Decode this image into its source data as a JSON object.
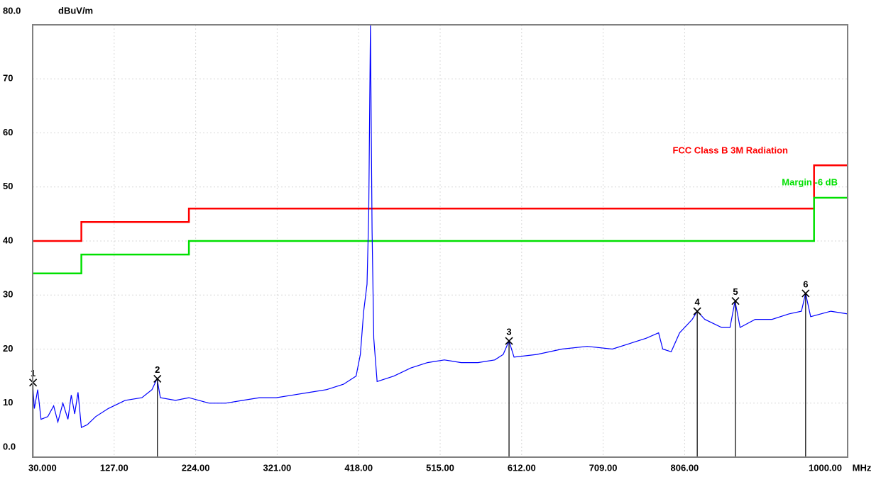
{
  "chart_data": {
    "type": "line",
    "y_unit": "dBuV/m",
    "x_unit": "MHz",
    "xlim": [
      30,
      1000
    ],
    "ylim": [
      0,
      80
    ],
    "xticks": [
      {
        "value": 30,
        "label": "30.000"
      },
      {
        "value": 127,
        "label": "127.00"
      },
      {
        "value": 224,
        "label": "224.00"
      },
      {
        "value": 321,
        "label": "321.00"
      },
      {
        "value": 418,
        "label": "418.00"
      },
      {
        "value": 515,
        "label": "515.00"
      },
      {
        "value": 612,
        "label": "612.00"
      },
      {
        "value": 709,
        "label": "709.00"
      },
      {
        "value": 806,
        "label": "806.00"
      },
      {
        "value": 1000,
        "label": "1000.00"
      }
    ],
    "yticks": [
      {
        "value": 0,
        "label": "0.0"
      },
      10,
      20,
      30,
      40,
      50,
      60,
      70,
      {
        "value": 80,
        "label": "80.0"
      }
    ],
    "grid": true,
    "series": [
      {
        "name": "FCC Class B 3M Radiation",
        "color": "#ff0000",
        "x": [
          30,
          88,
          88,
          216,
          216,
          960,
          960,
          1000
        ],
        "values": [
          40,
          40,
          43.5,
          43.5,
          46,
          46,
          54,
          54
        ]
      },
      {
        "name": "Margin -6 dB",
        "color": "#00e000",
        "x": [
          30,
          88,
          88,
          216,
          216,
          960,
          960,
          1000
        ],
        "values": [
          34,
          34,
          37.5,
          37.5,
          40,
          40,
          48,
          48
        ]
      },
      {
        "color": "#0000ff",
        "x": [
          30,
          32,
          36,
          40,
          48,
          55,
          60,
          66,
          72,
          76,
          80,
          84,
          88,
          95,
          105,
          120,
          140,
          160,
          172,
          178,
          182,
          200,
          216,
          240,
          260,
          280,
          300,
          320,
          340,
          360,
          380,
          400,
          415,
          420,
          424,
          428,
          430,
          432,
          434,
          436,
          440,
          460,
          480,
          500,
          520,
          540,
          560,
          580,
          590,
          597,
          603,
          630,
          660,
          690,
          720,
          740,
          760,
          775,
          780,
          790,
          800,
          815,
          821,
          830,
          850,
          860,
          866,
          872,
          890,
          910,
          930,
          945,
          950,
          956,
          980,
          1000
        ],
        "values": [
          13.5,
          9,
          12.5,
          7,
          7.5,
          9.5,
          6.5,
          10,
          7,
          11.5,
          8,
          12,
          5.5,
          6,
          7.5,
          9,
          10.5,
          11,
          12.5,
          14.5,
          11,
          10.5,
          11,
          10,
          10,
          10.5,
          11,
          11,
          11.5,
          12,
          12.5,
          13.5,
          15,
          19,
          27,
          32,
          45,
          80,
          42,
          22,
          14,
          15,
          16.5,
          17.5,
          18,
          17.5,
          17.5,
          18,
          19,
          21.5,
          18.5,
          19,
          20,
          20.5,
          20,
          21,
          22,
          23,
          20,
          19.5,
          23,
          25.5,
          27,
          25.5,
          24,
          24,
          28.9,
          24,
          25.5,
          25.5,
          26.5,
          27,
          30.3,
          26,
          27,
          26.5
        ]
      }
    ],
    "markers": [
      {
        "label": "1",
        "x": 30.5,
        "y": 13.8
      },
      {
        "label": "2",
        "x": 178.5,
        "y": 14.5
      },
      {
        "label": "3",
        "x": 597,
        "y": 21.5
      },
      {
        "label": "4",
        "x": 821,
        "y": 27
      },
      {
        "label": "5",
        "x": 866.5,
        "y": 28.9
      },
      {
        "label": "6",
        "x": 950,
        "y": 30.3
      }
    ]
  }
}
